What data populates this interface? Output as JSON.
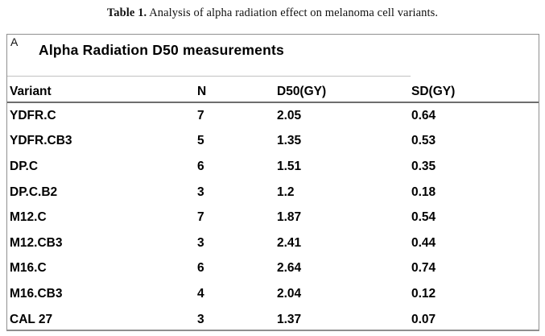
{
  "caption": {
    "label": "Table 1.",
    "text": " Analysis of alpha radiation effect on melanoma cell variants."
  },
  "panel": {
    "corner_label": "A",
    "title": "Alpha Radiation D50 measurements"
  },
  "colors": {
    "panel_border": "#8f8f8f",
    "header_rule": "#6e6e6e",
    "title_divider": "#c2c2c2",
    "text": "#000000",
    "background": "#ffffff"
  },
  "chart_data": {
    "type": "table",
    "title": "Alpha Radiation D50 measurements",
    "columns": [
      "Variant",
      "N",
      "D50(GY)",
      "SD(GY)"
    ],
    "rows": [
      [
        "YDFR.C",
        "7",
        "2.05",
        "0.64"
      ],
      [
        "YDFR.CB3",
        "5",
        "1.35",
        "0.53"
      ],
      [
        "DP.C",
        "6",
        "1.51",
        "0.35"
      ],
      [
        "DP.C.B2",
        "3",
        "1.2",
        "0.18"
      ],
      [
        "M12.C",
        "7",
        "1.87",
        "0.54"
      ],
      [
        "M12.CB3",
        "3",
        "2.41",
        "0.44"
      ],
      [
        "M16.C",
        "6",
        "2.64",
        "0.74"
      ],
      [
        "M16.CB3",
        "4",
        "2.04",
        "0.12"
      ],
      [
        "CAL 27",
        "3",
        "1.37",
        "0.07"
      ]
    ]
  }
}
